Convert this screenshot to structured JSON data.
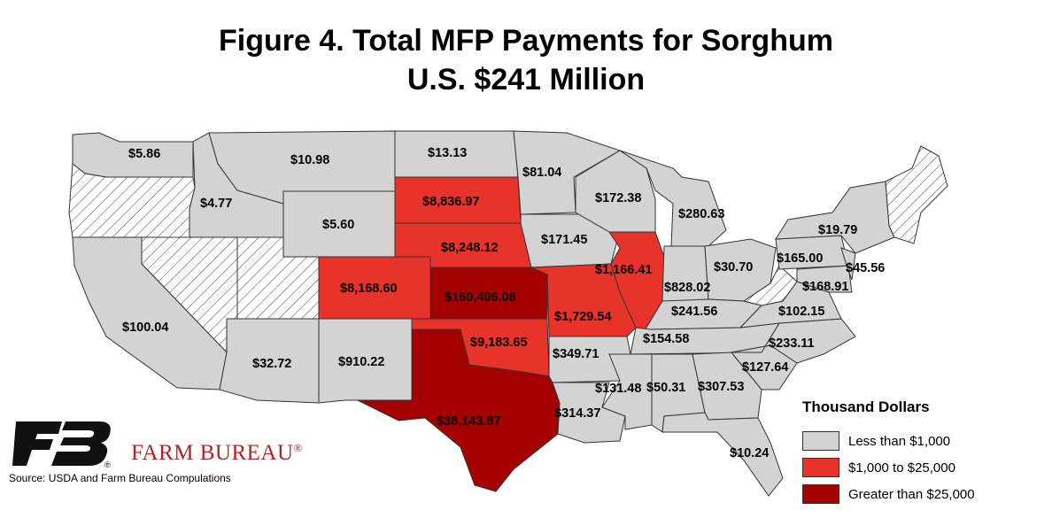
{
  "title": {
    "line1": "Figure 4. Total MFP Payments for Sorghum",
    "line2": "U.S. $241 Million"
  },
  "colors": {
    "low": "#d3d3d3",
    "mid": "#e8332a",
    "high": "#a50000",
    "none_hatch": "#ffffff"
  },
  "legend": {
    "title": "Thousand Dollars",
    "items": [
      {
        "label": "Less than $1,000",
        "color": "#d3d3d3"
      },
      {
        "label": "$1,000 to $25,000",
        "color": "#e8332a"
      },
      {
        "label": "Greater than $25,000",
        "color": "#a50000"
      }
    ]
  },
  "states": {
    "WA": "$5.86",
    "ID": "$4.77",
    "MT": "$10.98",
    "ND": "$13.13",
    "MN": "$81.04",
    "WI": "$172.38",
    "MI": "$280.63",
    "SD": "$8,836.97",
    "WY": "$5.60",
    "NE": "$8,248.12",
    "IA": "$171.45",
    "IL": "$1,166.41",
    "CO": "$8,168.60",
    "KS": "$160,406.08",
    "MO": "$1,729.54",
    "IN": "$828.02",
    "OH": "$30.70",
    "PA": "$165.00",
    "NY": "$19.79",
    "NJ": "$45.56",
    "MD": "$168.91",
    "VA": "$102.15",
    "KY": "$241.56",
    "TN": "$154.58",
    "NC": "$233.11",
    "SC": "$127.64",
    "GA": "$307.53",
    "AL": "$50.31",
    "MS": "$131.48",
    "LA": "$314.37",
    "AR": "$349.71",
    "OK": "$9,183.65",
    "TX": "$38,143.87",
    "NM": "$910.22",
    "AZ": "$32.72",
    "CA": "$100.04",
    "FL": "$10.24"
  },
  "brand": "FARM BUREAU",
  "brand_mark": "®",
  "source": "Source: USDA and Farm Bureau Compulations"
}
